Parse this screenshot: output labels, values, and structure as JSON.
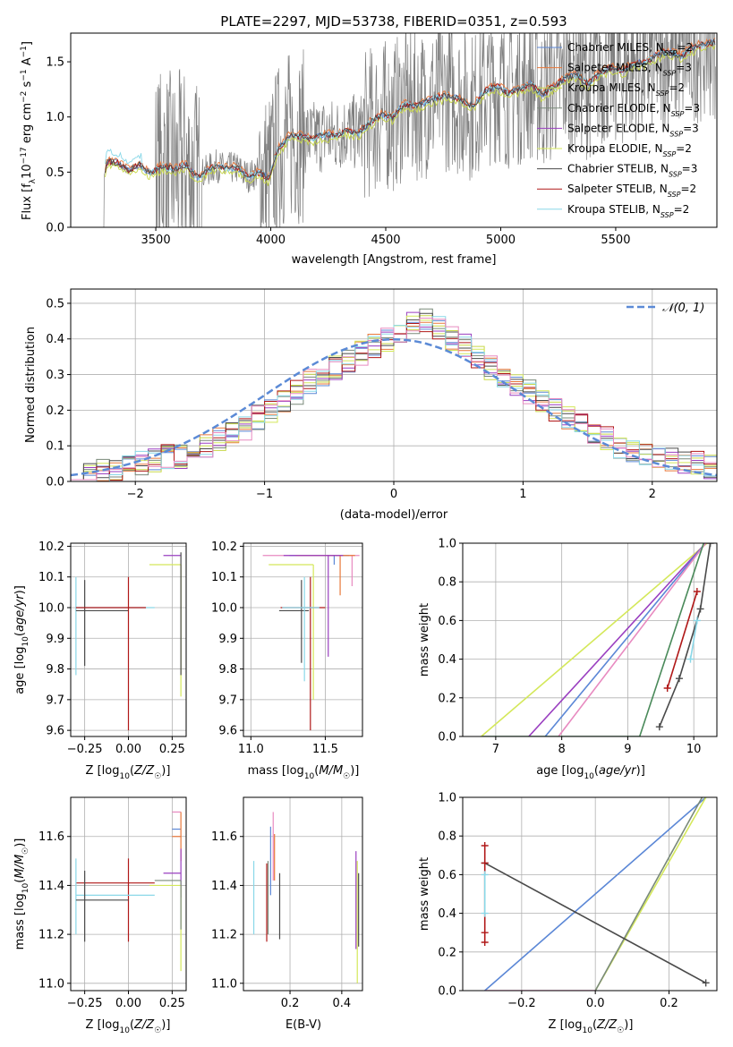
{
  "figure": {
    "title": "PLATE=2297, MJD=53738, FIBERID=0351, z=0.593"
  },
  "colors": {
    "chabrier_miles": "#5b87d6",
    "salpeter_miles": "#e8783a",
    "kroupa_miles": "#c8d848",
    "chabrier_elodie": "#7a8a7a",
    "salpeter_elodie": "#9a3fc0",
    "kroupa_elodie": "#d4e85a",
    "chabrier_stelib": "#4a4a4a",
    "salpeter_stelib": "#b01818",
    "kroupa_stelib": "#8ad8e8",
    "pink": "#e88ac0",
    "green": "#4a8a5a",
    "observed": "#808080",
    "gaussian": "#5b8ad6"
  },
  "chart_data": [
    {
      "id": "spectrum",
      "type": "line",
      "title": "PLATE=2297, MJD=53738, FIBERID=0351, z=0.593",
      "xlabel": "wavelength [Angstrom, rest frame]",
      "ylabel": "Flux [f_λ 10^-17 erg cm^-2 s^-1 A^-1]",
      "xlim": [
        3130,
        5940
      ],
      "ylim": [
        0,
        1.76
      ],
      "xticks": [
        3500,
        4000,
        4500,
        5000,
        5500
      ],
      "yticks": [
        0.0,
        0.5,
        1.0,
        1.5
      ],
      "tick_labels_x": [
        "3500",
        "4000",
        "4500",
        "5000",
        "5500"
      ],
      "tick_labels_y": [
        "0.0",
        "0.5",
        "1.0",
        "1.5"
      ],
      "grid": false,
      "legend_position": "top-right",
      "legend": [
        {
          "label": "Chabrier MILES, N",
          "sub": "SSP",
          "tail": "=2",
          "color": "#5b87d6"
        },
        {
          "label": "Salpeter MILES, N",
          "sub": "SSP",
          "tail": "=3",
          "color": "#e8783a"
        },
        {
          "label": "Kroupa MILES, N",
          "sub": "SSP",
          "tail": "=2",
          "color": "#c8d848"
        },
        {
          "label": "Chabrier ELODIE, N",
          "sub": "SSP",
          "tail": "=3",
          "color": "#7a8a7a"
        },
        {
          "label": "Salpeter ELODIE, N",
          "sub": "SSP",
          "tail": "=3",
          "color": "#9a3fc0"
        },
        {
          "label": "Kroupa ELODIE, N",
          "sub": "SSP",
          "tail": "=2",
          "color": "#d4e85a"
        },
        {
          "label": "Chabrier STELIB, N",
          "sub": "SSP",
          "tail": "=3",
          "color": "#4a4a4a"
        },
        {
          "label": "Salpeter STELIB, N",
          "sub": "SSP",
          "tail": "=2",
          "color": "#b01818"
        },
        {
          "label": "Kroupa STELIB, N",
          "sub": "SSP",
          "tail": "=2",
          "color": "#8ad8e8"
        }
      ],
      "model_continuum": {
        "x": [
          3270,
          3290,
          3330,
          3380,
          3430,
          3480,
          3530,
          3580,
          3630,
          3680,
          3720,
          3760,
          3800,
          3850,
          3900,
          3950,
          3990,
          4030,
          4080,
          4130,
          4180,
          4230,
          4280,
          4330,
          4380,
          4430,
          4480,
          4530,
          4580,
          4630,
          4680,
          4730,
          4780,
          4830,
          4880,
          4930,
          4980,
          5030,
          5080,
          5130,
          5180,
          5230,
          5280,
          5330,
          5380,
          5430,
          5480,
          5530,
          5580,
          5630,
          5680,
          5730,
          5780,
          5830,
          5880,
          5930
        ],
        "y": [
          0.43,
          0.58,
          0.57,
          0.5,
          0.55,
          0.49,
          0.56,
          0.52,
          0.57,
          0.45,
          0.51,
          0.56,
          0.53,
          0.54,
          0.46,
          0.5,
          0.44,
          0.7,
          0.82,
          0.83,
          0.8,
          0.84,
          0.83,
          0.88,
          0.85,
          0.95,
          1.02,
          1.0,
          1.12,
          1.1,
          1.14,
          1.18,
          1.2,
          1.15,
          1.1,
          1.23,
          1.28,
          1.22,
          1.25,
          1.3,
          1.2,
          1.28,
          1.35,
          1.38,
          1.3,
          1.4,
          1.45,
          1.42,
          1.48,
          1.5,
          1.56,
          1.6,
          1.55,
          1.62,
          1.66,
          1.68
        ]
      }
    },
    {
      "id": "residuals",
      "type": "histogram",
      "xlabel": "(data-model)/error",
      "ylabel": "Normed distribution",
      "xlim": [
        -2.5,
        2.5
      ],
      "ylim": [
        0,
        0.54
      ],
      "xticks": [
        -2,
        -1,
        0,
        1,
        2
      ],
      "yticks": [
        0.0,
        0.1,
        0.2,
        0.3,
        0.4,
        0.5
      ],
      "tick_labels_x": [
        "−2",
        "−1",
        "0",
        "1",
        "2"
      ],
      "tick_labels_y": [
        "0.0",
        "0.1",
        "0.2",
        "0.3",
        "0.4",
        "0.5"
      ],
      "grid": true,
      "legend_position": "top-right",
      "legend": [
        {
          "label": "𝒩(0, 1)",
          "style": "dashed",
          "color": "#5b8ad6"
        }
      ],
      "bin_width": 0.1,
      "bin_start": -2.5,
      "envelope": [
        0.01,
        0.02,
        0.03,
        0.03,
        0.04,
        0.05,
        0.06,
        0.07,
        0.07,
        0.09,
        0.1,
        0.12,
        0.14,
        0.15,
        0.18,
        0.2,
        0.22,
        0.25,
        0.28,
        0.3,
        0.32,
        0.34,
        0.36,
        0.38,
        0.4,
        0.42,
        0.44,
        0.45,
        0.43,
        0.4,
        0.38,
        0.35,
        0.32,
        0.3,
        0.27,
        0.25,
        0.23,
        0.2,
        0.18,
        0.16,
        0.14,
        0.12,
        0.1,
        0.09,
        0.08,
        0.07,
        0.06,
        0.05,
        0.05,
        0.04
      ]
    },
    {
      "id": "age_vs_Z",
      "type": "errorbar",
      "xlabel": "Z [log10(Z/Z☉)]",
      "ylabel": "age [log10(age/yr)]",
      "xlim": [
        -0.33,
        0.33
      ],
      "ylim": [
        9.58,
        10.21
      ],
      "xticks": [
        -0.25,
        0.0,
        0.25
      ],
      "yticks": [
        9.6,
        9.7,
        9.8,
        9.9,
        10.0,
        10.1,
        10.2
      ],
      "tick_labels_x": [
        "−0.25",
        "0.00",
        "0.25"
      ],
      "tick_labels_y": [
        "9.6",
        "9.7",
        "9.8",
        "9.9",
        "10.0",
        "10.1",
        "10.2"
      ],
      "grid": true
    },
    {
      "id": "age_vs_mass",
      "type": "errorbar",
      "xlabel": "mass [log10(M/M☉)]",
      "ylabel": "",
      "xlim": [
        10.95,
        11.75
      ],
      "ylim": [
        9.58,
        10.21
      ],
      "xticks": [
        11.0,
        11.5
      ],
      "yticks": [
        9.6,
        9.7,
        9.8,
        9.9,
        10.0,
        10.1,
        10.2
      ],
      "tick_labels_x": [
        "11.0",
        "11.5"
      ],
      "tick_labels_y": [
        "9.6",
        "9.7",
        "9.8",
        "9.9",
        "10.0",
        "10.1",
        "10.2"
      ],
      "grid": true
    },
    {
      "id": "massweight_vs_age",
      "type": "line",
      "xlabel": "age [log10(age/yr)]",
      "ylabel": "mass weight",
      "xlim": [
        6.5,
        10.35
      ],
      "ylim": [
        0,
        1.0
      ],
      "xticks": [
        7,
        8,
        9,
        10
      ],
      "yticks": [
        0.0,
        0.2,
        0.4,
        0.6,
        0.8,
        1.0
      ],
      "tick_labels_x": [
        "7",
        "8",
        "9",
        "10"
      ],
      "tick_labels_y": [
        "0.0",
        "0.2",
        "0.4",
        "0.6",
        "0.8",
        "1.0"
      ],
      "grid": true,
      "series": [
        {
          "color": "#d4e85a",
          "x": [
            6.78,
            10.2
          ],
          "y": [
            0.0,
            1.0
          ]
        },
        {
          "color": "#9a3fc0",
          "x": [
            7.5,
            10.18
          ],
          "y": [
            0.0,
            1.0
          ]
        },
        {
          "color": "#5b87d6",
          "x": [
            7.75,
            10.18
          ],
          "y": [
            0.0,
            1.0
          ]
        },
        {
          "color": "#e88ac0",
          "x": [
            7.95,
            10.18
          ],
          "y": [
            0.0,
            1.0
          ]
        },
        {
          "color": "#4a8a5a",
          "x": [
            6.8,
            9.18,
            10.15
          ],
          "y": [
            0.0,
            0.0,
            1.0
          ]
        },
        {
          "color": "#4a4a4a",
          "x": [
            9.48,
            9.78,
            10.1,
            10.25
          ],
          "y": [
            0.05,
            0.3,
            0.66,
            1.0
          ],
          "markers": true
        },
        {
          "color": "#b01818",
          "x": [
            9.6,
            10.05
          ],
          "y": [
            0.25,
            0.75
          ],
          "markers": true
        },
        {
          "color": "#8ad8e8",
          "x": [
            9.95,
            10.05
          ],
          "y": [
            0.4,
            0.6
          ],
          "markers": true
        }
      ]
    },
    {
      "id": "mass_vs_Z",
      "type": "errorbar",
      "xlabel": "Z [log10(Z/Z☉)]",
      "ylabel": "mass [log10(M/M☉)]",
      "xlim": [
        -0.33,
        0.33
      ],
      "ylim": [
        10.97,
        11.76
      ],
      "xticks": [
        -0.25,
        0.0,
        0.25
      ],
      "yticks": [
        11.0,
        11.2,
        11.4,
        11.6
      ],
      "tick_labels_x": [
        "−0.25",
        "0.00",
        "0.25"
      ],
      "tick_labels_y": [
        "11.0",
        "11.2",
        "11.4",
        "11.6"
      ],
      "grid": true
    },
    {
      "id": "mass_vs_ebv",
      "type": "errorbar",
      "xlabel": "E(B-V)",
      "ylabel": "",
      "xlim": [
        0.02,
        0.48
      ],
      "ylim": [
        10.97,
        11.76
      ],
      "xticks": [
        0.2,
        0.4
      ],
      "yticks": [
        11.0,
        11.2,
        11.4,
        11.6
      ],
      "tick_labels_x": [
        "0.2",
        "0.4"
      ],
      "tick_labels_y": [
        "11.0",
        "11.2",
        "11.4",
        "11.6"
      ],
      "grid": true
    },
    {
      "id": "massweight_vs_Z",
      "type": "line",
      "xlabel": "Z [log10(Z/Z☉)]",
      "ylabel": "mass weight",
      "xlim": [
        -0.36,
        0.33
      ],
      "ylim": [
        0,
        1.0
      ],
      "xticks": [
        -0.2,
        0.0,
        0.2
      ],
      "yticks": [
        0.0,
        0.2,
        0.4,
        0.6,
        0.8,
        1.0
      ],
      "tick_labels_x": [
        "−0.2",
        "0.0",
        "0.2"
      ],
      "tick_labels_y": [
        "0.0",
        "0.2",
        "0.4",
        "0.6",
        "0.8",
        "1.0"
      ],
      "grid": true,
      "series": [
        {
          "color": "#5b87d6",
          "x": [
            -0.3,
            0.3
          ],
          "y": [
            0.0,
            1.0
          ]
        },
        {
          "color": "#d4e85a",
          "x": [
            0.0,
            0.3
          ],
          "y": [
            0.0,
            1.0
          ]
        },
        {
          "color": "#7a8a7a",
          "x": [
            0.0,
            0.29
          ],
          "y": [
            0.0,
            1.0
          ]
        },
        {
          "color": "#e88ac0",
          "x": [
            -0.3,
            0.0
          ],
          "y": [
            0.0,
            0.0
          ]
        },
        {
          "color": "#4a4a4a",
          "x": [
            -0.3,
            0.3
          ],
          "y": [
            0.66,
            0.04
          ],
          "markers": true
        },
        {
          "color": "#b01818",
          "x": [
            -0.3,
            -0.3,
            -0.3,
            -0.3
          ],
          "y": [
            0.25,
            0.3,
            0.66,
            0.75
          ],
          "markers": true
        },
        {
          "color": "#8ad8e8",
          "x": [
            -0.3,
            -0.3
          ],
          "y": [
            0.4,
            0.6
          ],
          "markers": true
        }
      ]
    }
  ]
}
